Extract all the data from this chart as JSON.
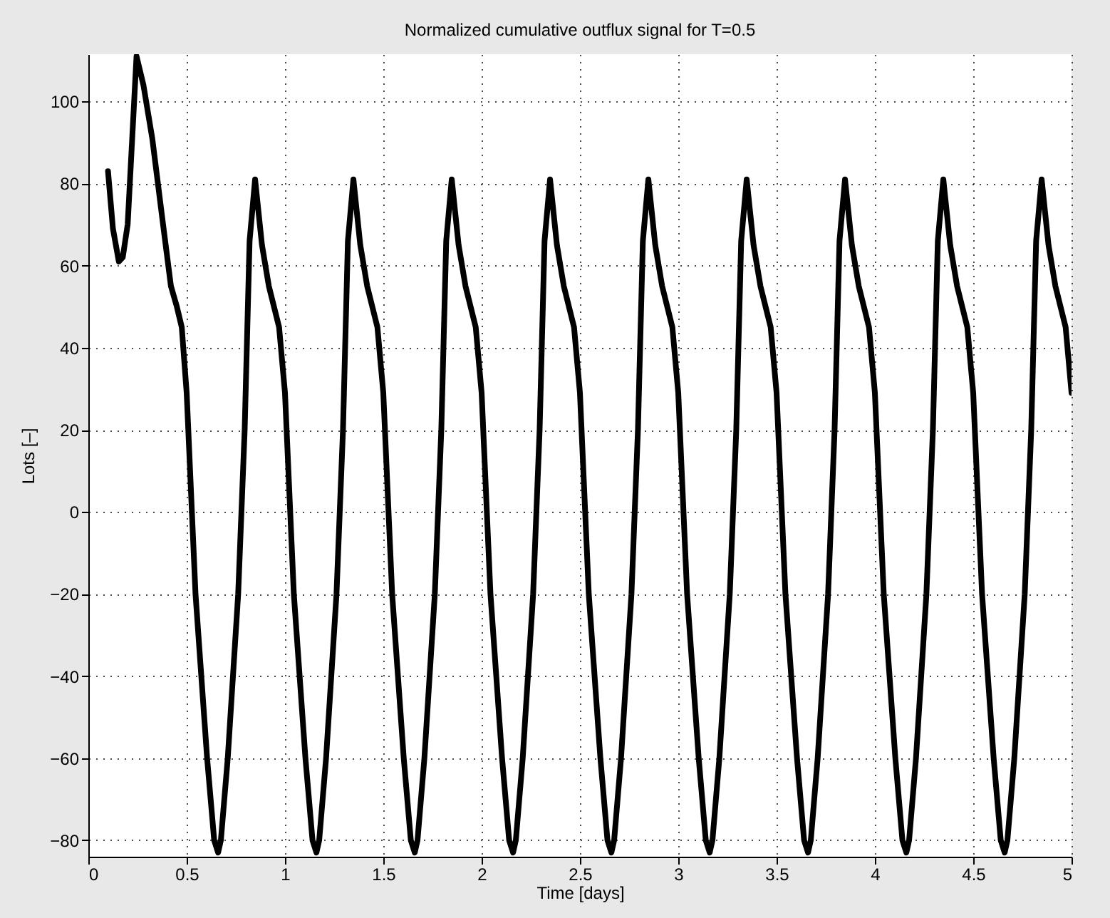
{
  "chart_data": {
    "type": "line",
    "title": "Normalized cumulative outflux signal for T=0.5",
    "xlabel": "Time [days]",
    "ylabel": "Lots [–]",
    "x": [
      0.1,
      0.125,
      0.155,
      0.175,
      0.2,
      0.245,
      0.28,
      0.325,
      0.38,
      0.42,
      0.45,
      0.475,
      0.5,
      0.545,
      0.604,
      0.64,
      0.66,
      0.674,
      0.709,
      0.762,
      0.795,
      0.82,
      0.848,
      0.883,
      0.918,
      0.97,
      1.0,
      1.045,
      1.104,
      1.14,
      1.16,
      1.174,
      1.209,
      1.262,
      1.295,
      1.32,
      1.348,
      1.383,
      1.418,
      1.47,
      1.5,
      1.545,
      1.604,
      1.64,
      1.66,
      1.674,
      1.709,
      1.762,
      1.795,
      1.82,
      1.848,
      1.883,
      1.918,
      1.97,
      2.0,
      2.045,
      2.104,
      2.14,
      2.16,
      2.174,
      2.209,
      2.262,
      2.295,
      2.32,
      2.348,
      2.383,
      2.418,
      2.47,
      2.5,
      2.545,
      2.604,
      2.64,
      2.66,
      2.674,
      2.709,
      2.762,
      2.795,
      2.82,
      2.848,
      2.883,
      2.918,
      2.97,
      3.0,
      3.045,
      3.104,
      3.14,
      3.16,
      3.174,
      3.209,
      3.262,
      3.295,
      3.32,
      3.348,
      3.383,
      3.418,
      3.47,
      3.5,
      3.545,
      3.604,
      3.64,
      3.66,
      3.674,
      3.709,
      3.762,
      3.795,
      3.82,
      3.848,
      3.883,
      3.918,
      3.97,
      4.0,
      4.045,
      4.104,
      4.14,
      4.16,
      4.174,
      4.209,
      4.262,
      4.295,
      4.32,
      4.348,
      4.383,
      4.418,
      4.47,
      4.5,
      4.545,
      4.604,
      4.64,
      4.66,
      4.674,
      4.709,
      4.762,
      4.795,
      4.82,
      4.848,
      4.883,
      4.918,
      4.97,
      5.0
    ],
    "series": [
      {
        "color": "#000000",
        "values": [
          83,
          69,
          61,
          62,
          70,
          111,
          104,
          91,
          70,
          55,
          50,
          45,
          29,
          -20,
          -60,
          -80,
          -83,
          -80,
          -60,
          -20,
          20,
          66,
          81,
          65,
          55,
          45,
          29,
          -20,
          -60,
          -80,
          -83,
          -80,
          -60,
          -20,
          20,
          66,
          81,
          65,
          55,
          45,
          29,
          -20,
          -60,
          -80,
          -83,
          -80,
          -60,
          -20,
          20,
          66,
          81,
          65,
          55,
          45,
          29,
          -20,
          -60,
          -80,
          -83,
          -80,
          -60,
          -20,
          20,
          66,
          81,
          65,
          55,
          45,
          29,
          -20,
          -60,
          -80,
          -83,
          -80,
          -60,
          -20,
          20,
          66,
          81,
          65,
          55,
          45,
          29,
          -20,
          -60,
          -80,
          -83,
          -80,
          -60,
          -20,
          20,
          66,
          81,
          65,
          55,
          45,
          29,
          -20,
          -60,
          -80,
          -83,
          -80,
          -60,
          -20,
          20,
          66,
          81,
          65,
          55,
          45,
          29,
          -20,
          -60,
          -80,
          -83,
          -80,
          -60,
          -20,
          20,
          66,
          81,
          65,
          55,
          45,
          29,
          -20,
          -60,
          -80,
          -83,
          -80,
          -60,
          -20,
          20,
          66,
          81,
          65,
          55,
          45,
          29
        ]
      }
    ],
    "xlim": [
      0,
      5
    ],
    "ylim": [
      -84,
      111.5
    ],
    "xticks": [
      0,
      0.5,
      1,
      1.5,
      2,
      2.5,
      3,
      3.5,
      4,
      4.5,
      5
    ],
    "yticks": [
      {
        "value": -80,
        "label": "−80"
      },
      {
        "value": -60,
        "label": "−60"
      },
      {
        "value": -40,
        "label": "−40"
      },
      {
        "value": -20,
        "label": "−20"
      },
      0,
      20,
      40,
      60,
      80,
      100
    ],
    "grid": true
  }
}
